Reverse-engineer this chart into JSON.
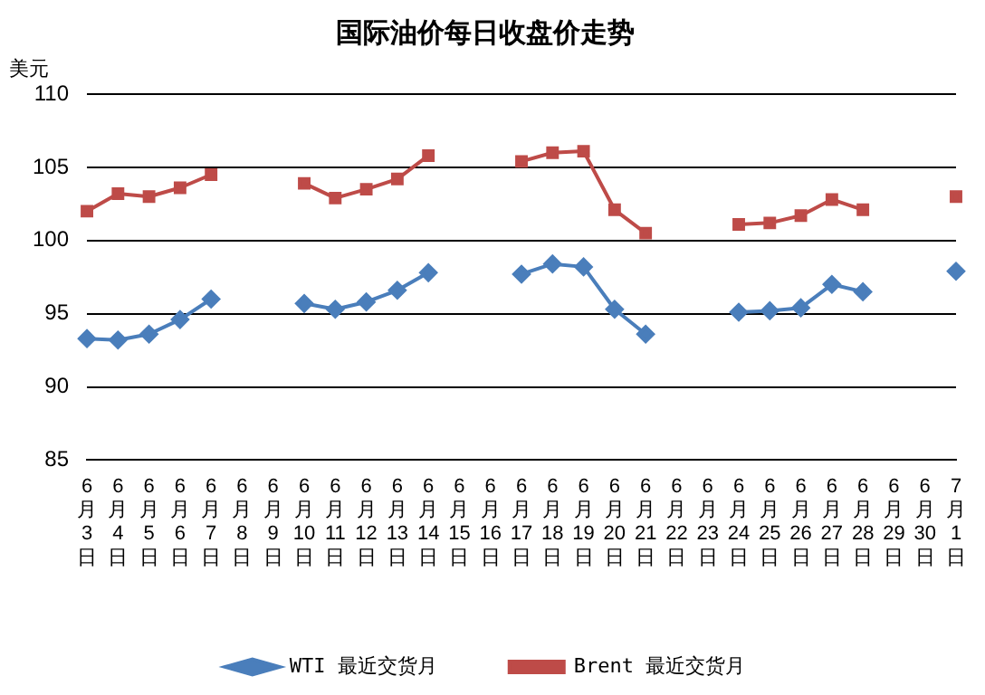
{
  "chart_data": {
    "type": "line",
    "title": "国际油价每日收盘价走势",
    "ylabel": "美元",
    "categories": [
      "6月3日",
      "6月4日",
      "6月5日",
      "6月6日",
      "6月7日",
      "6月8日",
      "6月9日",
      "6月10日",
      "6月11日",
      "6月12日",
      "6月13日",
      "6月14日",
      "6月15日",
      "6月16日",
      "6月17日",
      "6月18日",
      "6月19日",
      "6月20日",
      "6月21日",
      "6月22日",
      "6月23日",
      "6月24日",
      "6月25日",
      "6月26日",
      "6月27日",
      "6月28日",
      "6月29日",
      "6月30日",
      "7月1日"
    ],
    "series": [
      {
        "name": "WTI 最近交货月",
        "color": "#4a7ebb",
        "marker": "diamond",
        "values": [
          93.3,
          93.2,
          93.6,
          94.6,
          96.0,
          null,
          null,
          95.7,
          95.3,
          95.8,
          96.6,
          97.8,
          null,
          null,
          97.7,
          98.4,
          98.2,
          95.3,
          93.6,
          null,
          null,
          95.1,
          95.2,
          95.4,
          97.0,
          96.5,
          null,
          null,
          97.9
        ]
      },
      {
        "name": "Brent 最近交货月",
        "color": "#be4b48",
        "marker": "square",
        "values": [
          102.0,
          103.2,
          103.0,
          103.6,
          104.5,
          null,
          null,
          103.9,
          102.9,
          103.5,
          104.2,
          105.8,
          null,
          null,
          105.4,
          106.0,
          106.1,
          102.1,
          100.5,
          null,
          null,
          101.1,
          101.2,
          101.7,
          102.8,
          102.1,
          null,
          null,
          103.0
        ]
      }
    ],
    "ylim": [
      85,
      110
    ],
    "yticks": [
      85,
      90,
      95,
      100,
      105,
      110
    ],
    "grid": "y",
    "legend": "bottom",
    "line_style": "solid"
  }
}
